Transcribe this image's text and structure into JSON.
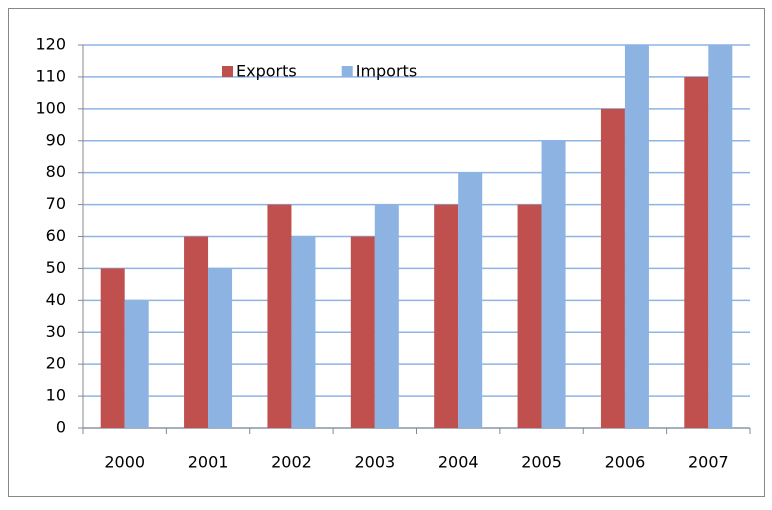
{
  "chart_data": {
    "type": "bar",
    "categories": [
      "2000",
      "2001",
      "2002",
      "2003",
      "2004",
      "2005",
      "2006",
      "2007"
    ],
    "series": [
      {
        "name": "Exports",
        "color": "#c0504d",
        "values": [
          50,
          60,
          70,
          60,
          70,
          70,
          100,
          110
        ]
      },
      {
        "name": "Imports",
        "color": "#8db3e2",
        "values": [
          40,
          50,
          60,
          70,
          80,
          90,
          120,
          120
        ]
      }
    ],
    "ylim": [
      0,
      120
    ],
    "yticks": [
      0,
      10,
      20,
      30,
      40,
      50,
      60,
      70,
      80,
      90,
      100,
      110,
      120
    ],
    "grid": true,
    "legend": "top"
  }
}
